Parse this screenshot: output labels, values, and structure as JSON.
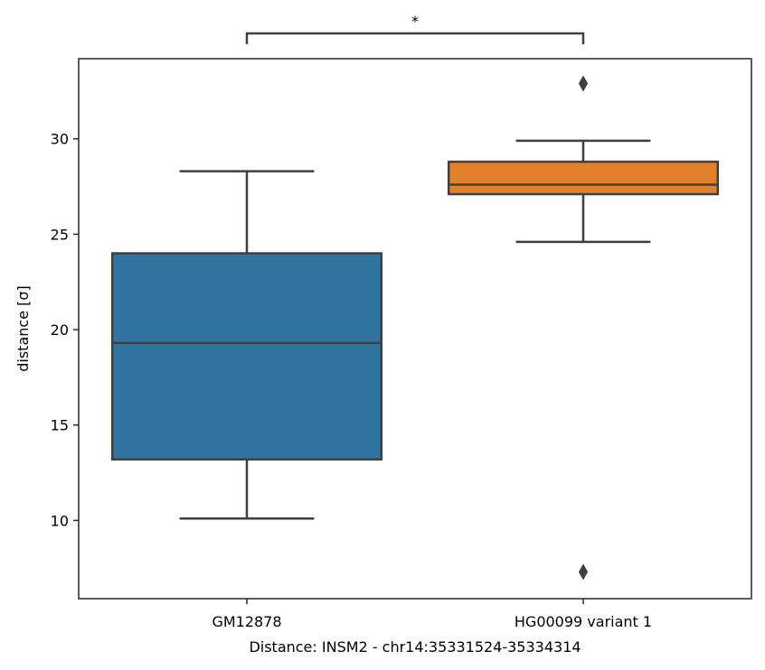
{
  "chart_data": {
    "type": "boxplot",
    "title": "",
    "xlabel": "Distance:  INSM2 - chr14:35331524-35334314",
    "ylabel": "distance [σ]",
    "ylim": [
      5.9,
      34.2
    ],
    "yticks": [
      10,
      15,
      20,
      25,
      30
    ],
    "grid": false,
    "categories": [
      "GM12878",
      "HG00099 variant 1"
    ],
    "boxes": [
      {
        "category": "GM12878",
        "color": "#3274a1",
        "whisker_low": 10.1,
        "q1": 13.2,
        "median": 19.3,
        "q3": 24.0,
        "whisker_high": 28.3,
        "outliers": []
      },
      {
        "category": "HG00099 variant 1",
        "color": "#e1812c",
        "whisker_low": 24.6,
        "q1": 27.1,
        "median": 27.6,
        "q3": 28.8,
        "whisker_high": 29.9,
        "outliers": [
          32.9,
          7.3
        ]
      }
    ],
    "annotations": [
      {
        "text": "*",
        "between": [
          "GM12878",
          "HG00099 variant 1"
        ]
      }
    ]
  }
}
